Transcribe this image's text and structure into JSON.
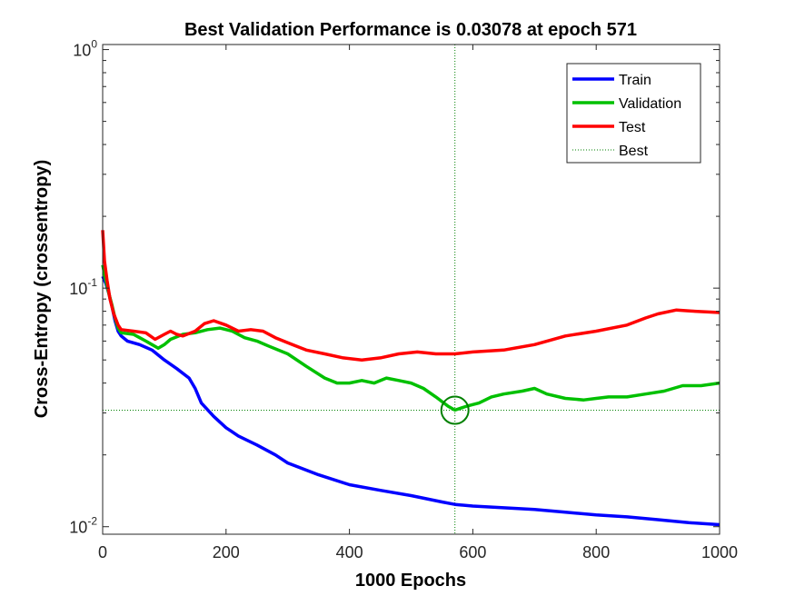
{
  "chart_data": {
    "type": "line",
    "title": "Best Validation Performance is 0.03078 at epoch 571",
    "xlabel": "1000 Epochs",
    "ylabel": "Cross-Entropy  (crossentropy)",
    "xlim": [
      0,
      1000
    ],
    "ylim": [
      0.0093,
      1.05
    ],
    "yscale": "log",
    "x_ticks": [
      "0",
      "200",
      "400",
      "600",
      "800",
      "1000"
    ],
    "y_ticks": [
      {
        "base": "10",
        "exp": "0",
        "value": 1
      },
      {
        "base": "10",
        "exp": "-1",
        "value": 0.1
      },
      {
        "base": "10",
        "exp": "-2",
        "value": 0.01
      }
    ],
    "best": {
      "epoch": 571,
      "value": 0.03078
    },
    "series": [
      {
        "name": "Train",
        "color": "#0000ff",
        "points": [
          [
            0,
            0.112
          ],
          [
            5,
            0.105
          ],
          [
            10,
            0.095
          ],
          [
            15,
            0.084
          ],
          [
            20,
            0.073
          ],
          [
            25,
            0.066
          ],
          [
            30,
            0.063
          ],
          [
            40,
            0.06
          ],
          [
            60,
            0.058
          ],
          [
            80,
            0.055
          ],
          [
            100,
            0.05
          ],
          [
            120,
            0.046
          ],
          [
            140,
            0.042
          ],
          [
            150,
            0.038
          ],
          [
            160,
            0.033
          ],
          [
            180,
            0.029
          ],
          [
            200,
            0.026
          ],
          [
            220,
            0.024
          ],
          [
            250,
            0.022
          ],
          [
            280,
            0.02
          ],
          [
            300,
            0.0185
          ],
          [
            350,
            0.0165
          ],
          [
            400,
            0.015
          ],
          [
            450,
            0.0142
          ],
          [
            500,
            0.0135
          ],
          [
            550,
            0.0127
          ],
          [
            571,
            0.0124
          ],
          [
            600,
            0.0122
          ],
          [
            650,
            0.012
          ],
          [
            700,
            0.0118
          ],
          [
            750,
            0.0115
          ],
          [
            800,
            0.0112
          ],
          [
            850,
            0.011
          ],
          [
            900,
            0.0107
          ],
          [
            950,
            0.0104
          ],
          [
            1000,
            0.0102
          ]
        ]
      },
      {
        "name": "Validation",
        "color": "#00c000",
        "points": [
          [
            0,
            0.125
          ],
          [
            5,
            0.108
          ],
          [
            10,
            0.095
          ],
          [
            15,
            0.085
          ],
          [
            20,
            0.075
          ],
          [
            25,
            0.068
          ],
          [
            30,
            0.065
          ],
          [
            50,
            0.064
          ],
          [
            60,
            0.062
          ],
          [
            70,
            0.06
          ],
          [
            80,
            0.058
          ],
          [
            90,
            0.056
          ],
          [
            100,
            0.058
          ],
          [
            110,
            0.061
          ],
          [
            130,
            0.064
          ],
          [
            150,
            0.065
          ],
          [
            170,
            0.067
          ],
          [
            190,
            0.068
          ],
          [
            210,
            0.066
          ],
          [
            230,
            0.062
          ],
          [
            250,
            0.06
          ],
          [
            270,
            0.057
          ],
          [
            300,
            0.053
          ],
          [
            330,
            0.047
          ],
          [
            360,
            0.042
          ],
          [
            380,
            0.04
          ],
          [
            400,
            0.04
          ],
          [
            420,
            0.041
          ],
          [
            440,
            0.04
          ],
          [
            460,
            0.042
          ],
          [
            480,
            0.041
          ],
          [
            500,
            0.04
          ],
          [
            520,
            0.038
          ],
          [
            540,
            0.035
          ],
          [
            560,
            0.032
          ],
          [
            571,
            0.0308
          ],
          [
            590,
            0.032
          ],
          [
            610,
            0.033
          ],
          [
            630,
            0.035
          ],
          [
            650,
            0.036
          ],
          [
            680,
            0.037
          ],
          [
            700,
            0.038
          ],
          [
            720,
            0.036
          ],
          [
            750,
            0.0345
          ],
          [
            780,
            0.034
          ],
          [
            800,
            0.0345
          ],
          [
            820,
            0.035
          ],
          [
            850,
            0.035
          ],
          [
            880,
            0.036
          ],
          [
            910,
            0.037
          ],
          [
            940,
            0.039
          ],
          [
            970,
            0.039
          ],
          [
            1000,
            0.04
          ]
        ]
      },
      {
        "name": "Test",
        "color": "#ff0000",
        "points": [
          [
            0,
            0.175
          ],
          [
            3,
            0.13
          ],
          [
            7,
            0.108
          ],
          [
            12,
            0.09
          ],
          [
            18,
            0.078
          ],
          [
            25,
            0.07
          ],
          [
            30,
            0.067
          ],
          [
            50,
            0.066
          ],
          [
            70,
            0.065
          ],
          [
            85,
            0.061
          ],
          [
            100,
            0.064
          ],
          [
            110,
            0.066
          ],
          [
            120,
            0.064
          ],
          [
            130,
            0.063
          ],
          [
            150,
            0.066
          ],
          [
            165,
            0.071
          ],
          [
            180,
            0.073
          ],
          [
            200,
            0.07
          ],
          [
            220,
            0.066
          ],
          [
            240,
            0.067
          ],
          [
            260,
            0.066
          ],
          [
            280,
            0.062
          ],
          [
            300,
            0.059
          ],
          [
            330,
            0.055
          ],
          [
            360,
            0.053
          ],
          [
            390,
            0.051
          ],
          [
            420,
            0.05
          ],
          [
            450,
            0.051
          ],
          [
            480,
            0.053
          ],
          [
            510,
            0.054
          ],
          [
            540,
            0.053
          ],
          [
            560,
            0.053
          ],
          [
            571,
            0.053
          ],
          [
            600,
            0.054
          ],
          [
            650,
            0.055
          ],
          [
            700,
            0.058
          ],
          [
            750,
            0.063
          ],
          [
            800,
            0.066
          ],
          [
            850,
            0.07
          ],
          [
            880,
            0.075
          ],
          [
            900,
            0.078
          ],
          [
            930,
            0.081
          ],
          [
            960,
            0.08
          ],
          [
            1000,
            0.079
          ]
        ]
      }
    ],
    "legend": {
      "position": "top-right",
      "entries": [
        {
          "label": "Train",
          "color": "#0000ff",
          "style": "solid"
        },
        {
          "label": "Validation",
          "color": "#00c000",
          "style": "solid"
        },
        {
          "label": "Test",
          "color": "#ff0000",
          "style": "solid"
        },
        {
          "label": "Best",
          "color": "#008000",
          "style": "dotted"
        }
      ]
    }
  }
}
